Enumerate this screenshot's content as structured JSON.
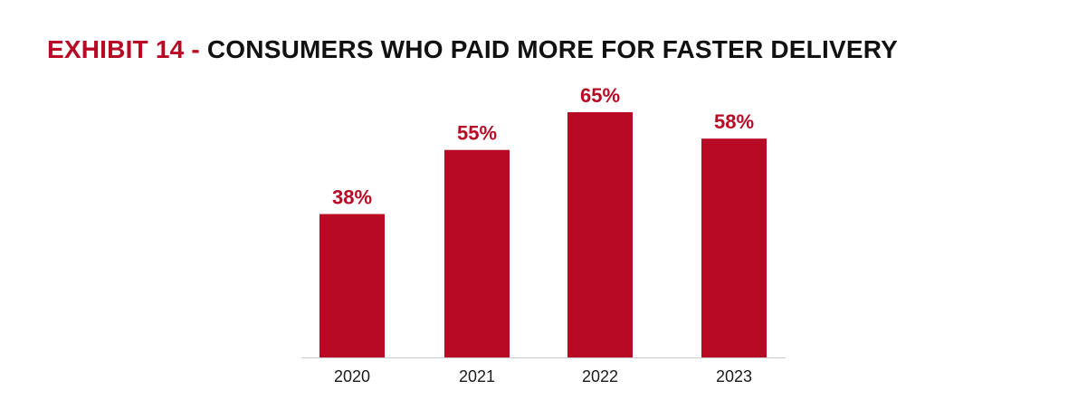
{
  "exhibit": {
    "prefix": "EXHIBIT 14",
    "separator": "-",
    "title": "CONSUMERS WHO PAID MORE FOR FASTER DELIVERY"
  },
  "colors": {
    "accent": "#b80a24",
    "title_text": "#111111",
    "axis": "#cccccc",
    "tick_text": "#1a1a1a"
  },
  "chart_data": {
    "type": "bar",
    "categories": [
      "2020",
      "2021",
      "2022",
      "2023"
    ],
    "values": [
      38,
      55,
      65,
      58
    ],
    "value_labels": [
      "38%",
      "55%",
      "65%",
      "58%"
    ],
    "title": "CONSUMERS WHO PAID MORE FOR FASTER DELIVERY",
    "xlabel": "",
    "ylabel": "",
    "ylim": [
      0,
      65
    ],
    "grid": false,
    "legend": "none"
  }
}
